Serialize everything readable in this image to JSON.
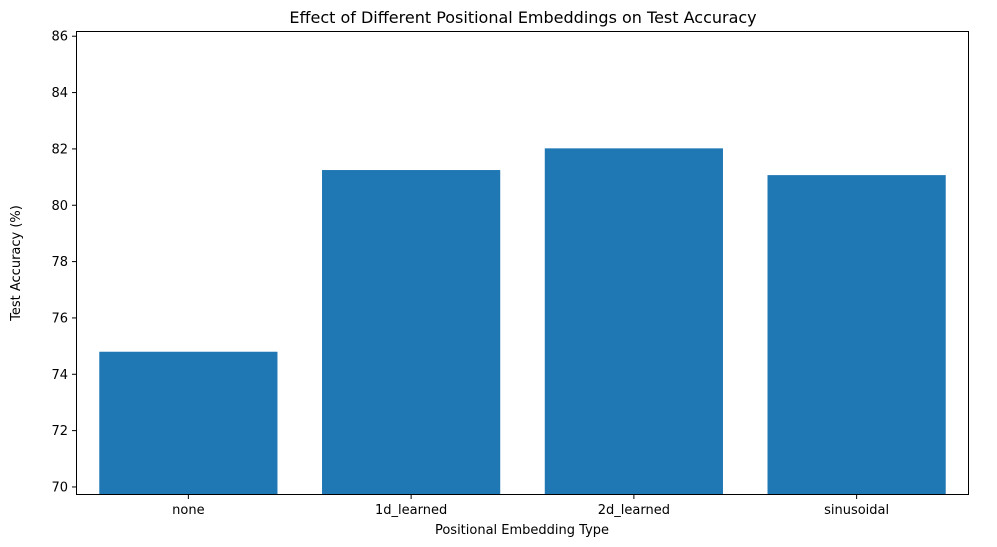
{
  "chart_data": {
    "type": "bar",
    "title": "Effect of Different Positional Embeddings on Test Accuracy",
    "xlabel": "Positional Embedding Type",
    "ylabel": "Test Accuracy (%)",
    "categories": [
      "none",
      "1d_learned",
      "2d_learned",
      "sinusoidal"
    ],
    "values": [
      74.8,
      81.25,
      82.02,
      81.07
    ],
    "ylim": [
      69.75,
      86.15
    ],
    "yticks": [
      70,
      72,
      74,
      76,
      78,
      80,
      82,
      84,
      86
    ],
    "bar_color": "#1f77b4",
    "grid": false,
    "legend": "none"
  }
}
